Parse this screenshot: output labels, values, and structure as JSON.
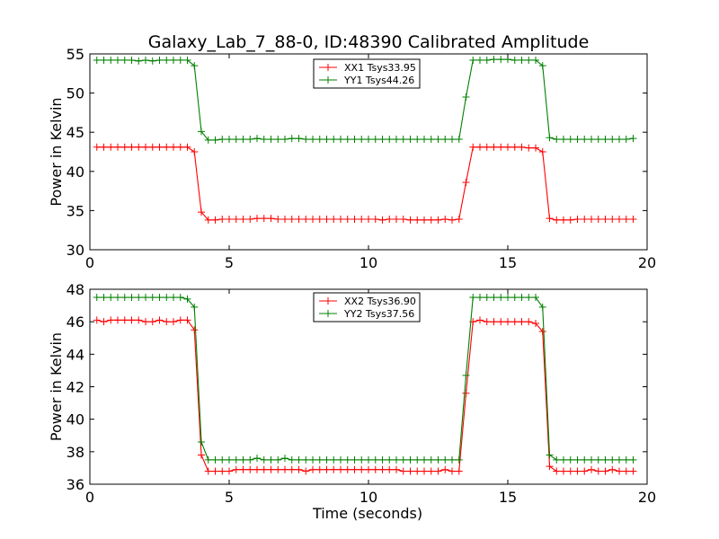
{
  "figure": {
    "title": "Galaxy_Lab_7_88-0, ID:48390 Calibrated Amplitude"
  },
  "chart_data": [
    {
      "type": "line",
      "xlabel": "",
      "ylabel": "Power in Kelvin",
      "xlim": [
        0,
        20
      ],
      "ylim": [
        30,
        55
      ],
      "xticks": [
        0,
        5,
        10,
        15,
        20
      ],
      "yticks": [
        30,
        35,
        40,
        45,
        50,
        55
      ],
      "grid": false,
      "legend_position": "top-center",
      "x": [
        0.25,
        0.5,
        0.75,
        1.0,
        1.25,
        1.5,
        1.75,
        2.0,
        2.25,
        2.5,
        2.75,
        3.0,
        3.25,
        3.5,
        3.75,
        4.0,
        4.25,
        4.5,
        4.75,
        5.0,
        5.25,
        5.5,
        5.75,
        6.0,
        6.25,
        6.5,
        6.75,
        7.0,
        7.25,
        7.5,
        7.75,
        8.0,
        8.25,
        8.5,
        8.75,
        9.0,
        9.25,
        9.5,
        9.75,
        10.0,
        10.25,
        10.5,
        10.75,
        11.0,
        11.25,
        11.5,
        11.75,
        12.0,
        12.25,
        12.5,
        12.75,
        13.0,
        13.25,
        13.5,
        13.75,
        14.0,
        14.25,
        14.5,
        14.75,
        15.0,
        15.25,
        15.5,
        15.75,
        16.0,
        16.25,
        16.5,
        16.75,
        17.0,
        17.25,
        17.5,
        17.75,
        18.0,
        18.25,
        18.5,
        18.75,
        19.0,
        19.25,
        19.5
      ],
      "series": [
        {
          "name": "XX1 Tsys33.95",
          "color": "#ff0000",
          "values": [
            43.1,
            43.1,
            43.1,
            43.1,
            43.1,
            43.1,
            43.1,
            43.1,
            43.1,
            43.1,
            43.1,
            43.1,
            43.1,
            43.1,
            42.5,
            34.8,
            33.8,
            33.8,
            33.9,
            33.9,
            33.9,
            33.9,
            33.9,
            34.0,
            34.0,
            34.0,
            33.9,
            33.9,
            33.9,
            33.9,
            33.9,
            33.9,
            33.9,
            33.9,
            33.9,
            33.9,
            33.9,
            33.9,
            33.9,
            33.9,
            33.9,
            33.8,
            33.9,
            33.9,
            33.9,
            33.8,
            33.8,
            33.8,
            33.8,
            33.8,
            33.9,
            33.8,
            33.9,
            38.6,
            43.1,
            43.1,
            43.1,
            43.1,
            43.1,
            43.1,
            43.1,
            43.1,
            43.0,
            43.0,
            42.5,
            34.0,
            33.8,
            33.8,
            33.8,
            33.9,
            33.9,
            33.9,
            33.9,
            33.9,
            33.9,
            33.9,
            33.9,
            33.9
          ]
        },
        {
          "name": "YY1 Tsys44.26",
          "color": "#008000",
          "values": [
            54.2,
            54.2,
            54.2,
            54.2,
            54.2,
            54.2,
            54.1,
            54.2,
            54.1,
            54.2,
            54.2,
            54.2,
            54.2,
            54.2,
            53.5,
            45.1,
            44.0,
            44.0,
            44.1,
            44.1,
            44.1,
            44.1,
            44.1,
            44.2,
            44.1,
            44.1,
            44.1,
            44.1,
            44.2,
            44.2,
            44.1,
            44.1,
            44.1,
            44.1,
            44.1,
            44.1,
            44.1,
            44.1,
            44.1,
            44.1,
            44.1,
            44.1,
            44.1,
            44.1,
            44.1,
            44.1,
            44.1,
            44.1,
            44.1,
            44.1,
            44.1,
            44.1,
            44.1,
            49.5,
            54.2,
            54.2,
            54.2,
            54.3,
            54.3,
            54.3,
            54.2,
            54.2,
            54.2,
            54.2,
            53.5,
            44.3,
            44.1,
            44.1,
            44.1,
            44.1,
            44.1,
            44.1,
            44.1,
            44.1,
            44.1,
            44.1,
            44.1,
            44.2
          ]
        }
      ]
    },
    {
      "type": "line",
      "xlabel": "Time (seconds)",
      "ylabel": "Power in Kelvin",
      "xlim": [
        0,
        20
      ],
      "ylim": [
        36,
        48
      ],
      "xticks": [
        0,
        5,
        10,
        15,
        20
      ],
      "yticks": [
        36,
        38,
        40,
        42,
        44,
        46,
        48
      ],
      "grid": false,
      "legend_position": "top-center",
      "x": [
        0.25,
        0.5,
        0.75,
        1.0,
        1.25,
        1.5,
        1.75,
        2.0,
        2.25,
        2.5,
        2.75,
        3.0,
        3.25,
        3.5,
        3.75,
        4.0,
        4.25,
        4.5,
        4.75,
        5.0,
        5.25,
        5.5,
        5.75,
        6.0,
        6.25,
        6.5,
        6.75,
        7.0,
        7.25,
        7.5,
        7.75,
        8.0,
        8.25,
        8.5,
        8.75,
        9.0,
        9.25,
        9.5,
        9.75,
        10.0,
        10.25,
        10.5,
        10.75,
        11.0,
        11.25,
        11.5,
        11.75,
        12.0,
        12.25,
        12.5,
        12.75,
        13.0,
        13.25,
        13.5,
        13.75,
        14.0,
        14.25,
        14.5,
        14.75,
        15.0,
        15.25,
        15.5,
        15.75,
        16.0,
        16.25,
        16.5,
        16.75,
        17.0,
        17.25,
        17.5,
        17.75,
        18.0,
        18.25,
        18.5,
        18.75,
        19.0,
        19.25,
        19.5
      ],
      "series": [
        {
          "name": "XX2 Tsys36.90",
          "color": "#ff0000",
          "values": [
            46.1,
            46.0,
            46.1,
            46.1,
            46.1,
            46.1,
            46.1,
            46.0,
            46.0,
            46.1,
            46.0,
            46.0,
            46.1,
            46.1,
            45.5,
            37.8,
            36.8,
            36.8,
            36.8,
            36.8,
            36.9,
            36.9,
            36.9,
            36.9,
            36.9,
            36.9,
            36.9,
            36.9,
            36.9,
            36.9,
            36.8,
            36.9,
            36.9,
            36.9,
            36.9,
            36.9,
            36.9,
            36.9,
            36.9,
            36.9,
            36.9,
            36.9,
            36.9,
            36.9,
            36.8,
            36.8,
            36.8,
            36.8,
            36.8,
            36.8,
            36.9,
            36.8,
            36.8,
            41.6,
            46.0,
            46.1,
            46.0,
            46.0,
            46.0,
            46.0,
            46.0,
            46.0,
            46.0,
            45.9,
            45.4,
            37.1,
            36.8,
            36.8,
            36.8,
            36.8,
            36.8,
            36.9,
            36.8,
            36.8,
            36.9,
            36.8,
            36.8,
            36.8
          ]
        },
        {
          "name": "YY2 Tsys37.56",
          "color": "#008000",
          "values": [
            47.5,
            47.5,
            47.5,
            47.5,
            47.5,
            47.5,
            47.5,
            47.5,
            47.5,
            47.5,
            47.5,
            47.5,
            47.5,
            47.4,
            46.9,
            38.6,
            37.5,
            37.5,
            37.5,
            37.5,
            37.5,
            37.5,
            37.5,
            37.6,
            37.5,
            37.5,
            37.5,
            37.6,
            37.5,
            37.5,
            37.5,
            37.5,
            37.5,
            37.5,
            37.5,
            37.5,
            37.5,
            37.5,
            37.5,
            37.5,
            37.5,
            37.5,
            37.5,
            37.5,
            37.5,
            37.5,
            37.5,
            37.5,
            37.5,
            37.5,
            37.5,
            37.5,
            37.5,
            42.7,
            47.5,
            47.5,
            47.5,
            47.5,
            47.5,
            47.5,
            47.5,
            47.5,
            47.5,
            47.5,
            46.9,
            37.8,
            37.5,
            37.5,
            37.5,
            37.5,
            37.5,
            37.5,
            37.5,
            37.5,
            37.5,
            37.5,
            37.5,
            37.5
          ]
        }
      ]
    }
  ]
}
